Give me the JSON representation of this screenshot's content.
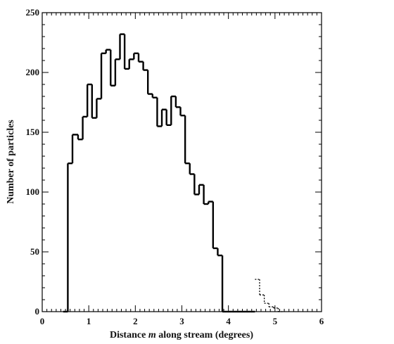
{
  "chart_data": {
    "type": "histogram",
    "xlabel_prefix": "Distance ",
    "xlabel_var": "m",
    "xlabel_suffix": " along stream (degrees)",
    "ylabel": "Number of particles",
    "xlim": [
      0,
      6
    ],
    "ylim": [
      0,
      250
    ],
    "x_ticks": [
      0,
      1,
      2,
      3,
      4,
      5,
      6
    ],
    "y_ticks": [
      0,
      50,
      100,
      150,
      200,
      250
    ],
    "x_minor_step": 0.1,
    "y_minor_step": 10,
    "series": [
      {
        "style": "solid",
        "color": "#000000",
        "bin_edges": [
          0.45,
          0.55,
          0.65,
          0.77,
          0.87,
          0.97,
          1.07,
          1.17,
          1.27,
          1.37,
          1.47,
          1.57,
          1.67,
          1.77,
          1.87,
          1.97,
          2.07,
          2.17,
          2.27,
          2.37,
          2.47,
          2.57,
          2.67,
          2.77,
          2.87,
          2.97,
          3.07,
          3.17,
          3.27,
          3.37,
          3.47,
          3.57,
          3.67,
          3.77,
          3.87,
          3.97,
          4.07,
          4.17,
          4.27,
          4.37,
          4.47,
          4.57
        ],
        "counts": [
          0,
          124,
          148,
          144,
          163,
          190,
          162,
          178,
          216,
          219,
          189,
          211,
          232,
          203,
          211,
          216,
          209,
          202,
          182,
          179,
          155,
          169,
          156,
          180,
          171,
          164,
          124,
          115,
          98,
          106,
          90,
          92,
          53,
          47,
          0,
          0,
          0,
          0,
          0,
          0,
          0
        ]
      },
      {
        "style": "dotted",
        "color": "#000000",
        "bin_edges": [
          4.57,
          4.67,
          4.77,
          4.87,
          4.97,
          5.07,
          5.17
        ],
        "counts": [
          27,
          14,
          7,
          4,
          3,
          0
        ]
      }
    ]
  }
}
